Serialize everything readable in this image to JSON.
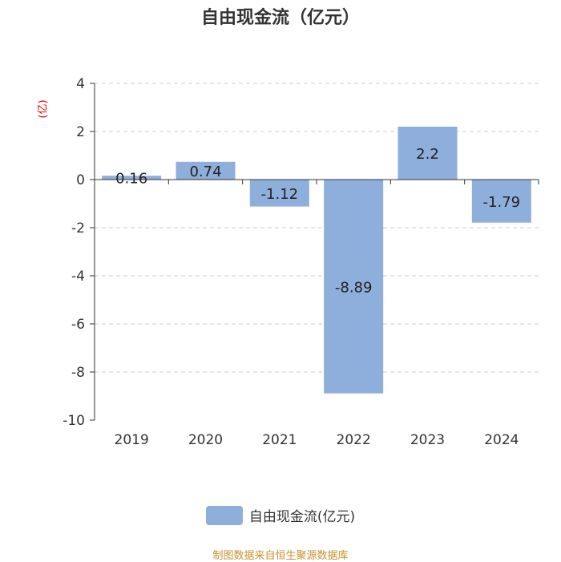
{
  "chart_data": {
    "type": "bar",
    "title": "自由现金流（亿元）",
    "y_unit": "(亿)",
    "categories": [
      "2019",
      "2020",
      "2021",
      "2022",
      "2023",
      "2024"
    ],
    "series": [
      {
        "name": "自由现金流(亿元)",
        "values": [
          0.16,
          0.74,
          -1.12,
          -8.89,
          2.2,
          -1.79
        ],
        "labels": [
          "0.16",
          "0.74",
          "-1.12",
          "-8.89",
          "2.2",
          "-1.79"
        ],
        "color": "#8eaedb"
      }
    ],
    "yticks": [
      4,
      2,
      0,
      -2,
      -4,
      -6,
      -8,
      -10
    ],
    "ylim": [
      -10,
      4
    ],
    "grid": true,
    "legend_position": "bottom"
  },
  "source": "制图数据来自恒生聚源数据库"
}
